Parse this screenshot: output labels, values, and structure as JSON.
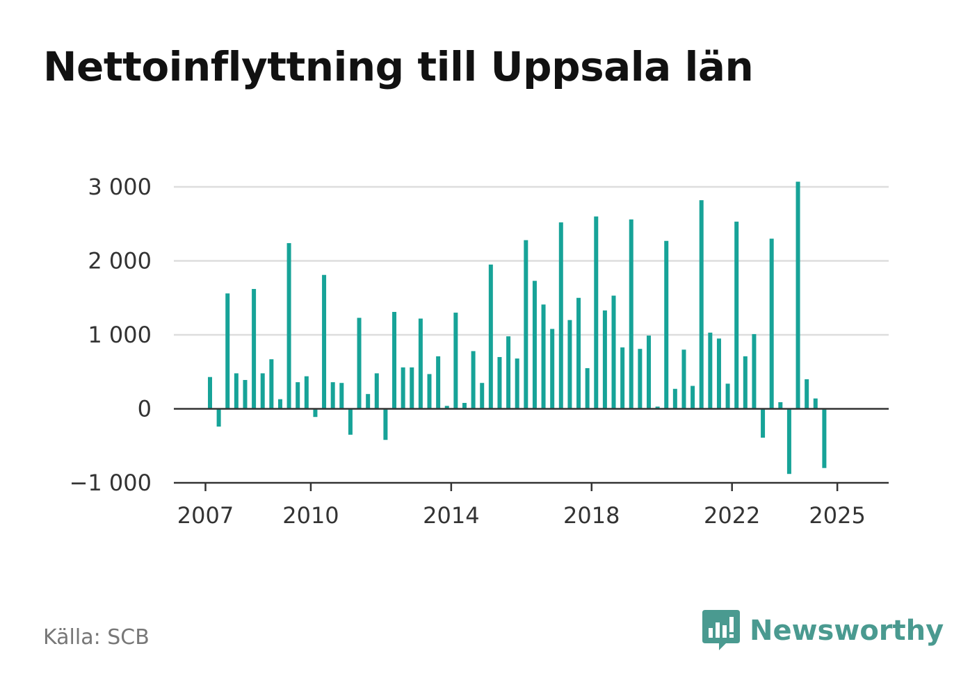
{
  "title": "Nettoinflyttning till Uppsala län",
  "source": "Källa: SCB",
  "brand": {
    "name": "Newsworthy",
    "icon": "newsworthy-logo-icon"
  },
  "colors": {
    "bar": "#17a398",
    "grid": "#dddddd",
    "axis": "#333333",
    "brand": "#4a9a90"
  },
  "chart_data": {
    "type": "bar",
    "frequency": "quarterly",
    "start": "2007-Q1",
    "x_ticks": [
      "2007",
      "2010",
      "2014",
      "2018",
      "2022",
      "2025"
    ],
    "y_ticks": [
      -1000,
      0,
      1000,
      2000,
      3000
    ],
    "y_tick_labels": [
      "−1 000",
      "0",
      "1 000",
      "2 000",
      "3 000"
    ],
    "ylim": [
      -1000,
      3000
    ],
    "grid": true,
    "values": [
      430,
      -240,
      1560,
      480,
      390,
      1620,
      480,
      670,
      130,
      2240,
      360,
      440,
      -110,
      1810,
      360,
      350,
      -350,
      1230,
      200,
      480,
      -420,
      1310,
      560,
      560,
      1220,
      470,
      710,
      40,
      1300,
      80,
      780,
      350,
      1950,
      700,
      980,
      680,
      2280,
      1730,
      1410,
      1080,
      2520,
      1200,
      1500,
      550,
      2600,
      1330,
      1530,
      830,
      2560,
      810,
      990,
      30,
      2270,
      270,
      800,
      310,
      2820,
      1030,
      950,
      340,
      2530,
      710,
      1010,
      -390,
      2300,
      90,
      -880,
      3070,
      400,
      140,
      -800
    ]
  }
}
